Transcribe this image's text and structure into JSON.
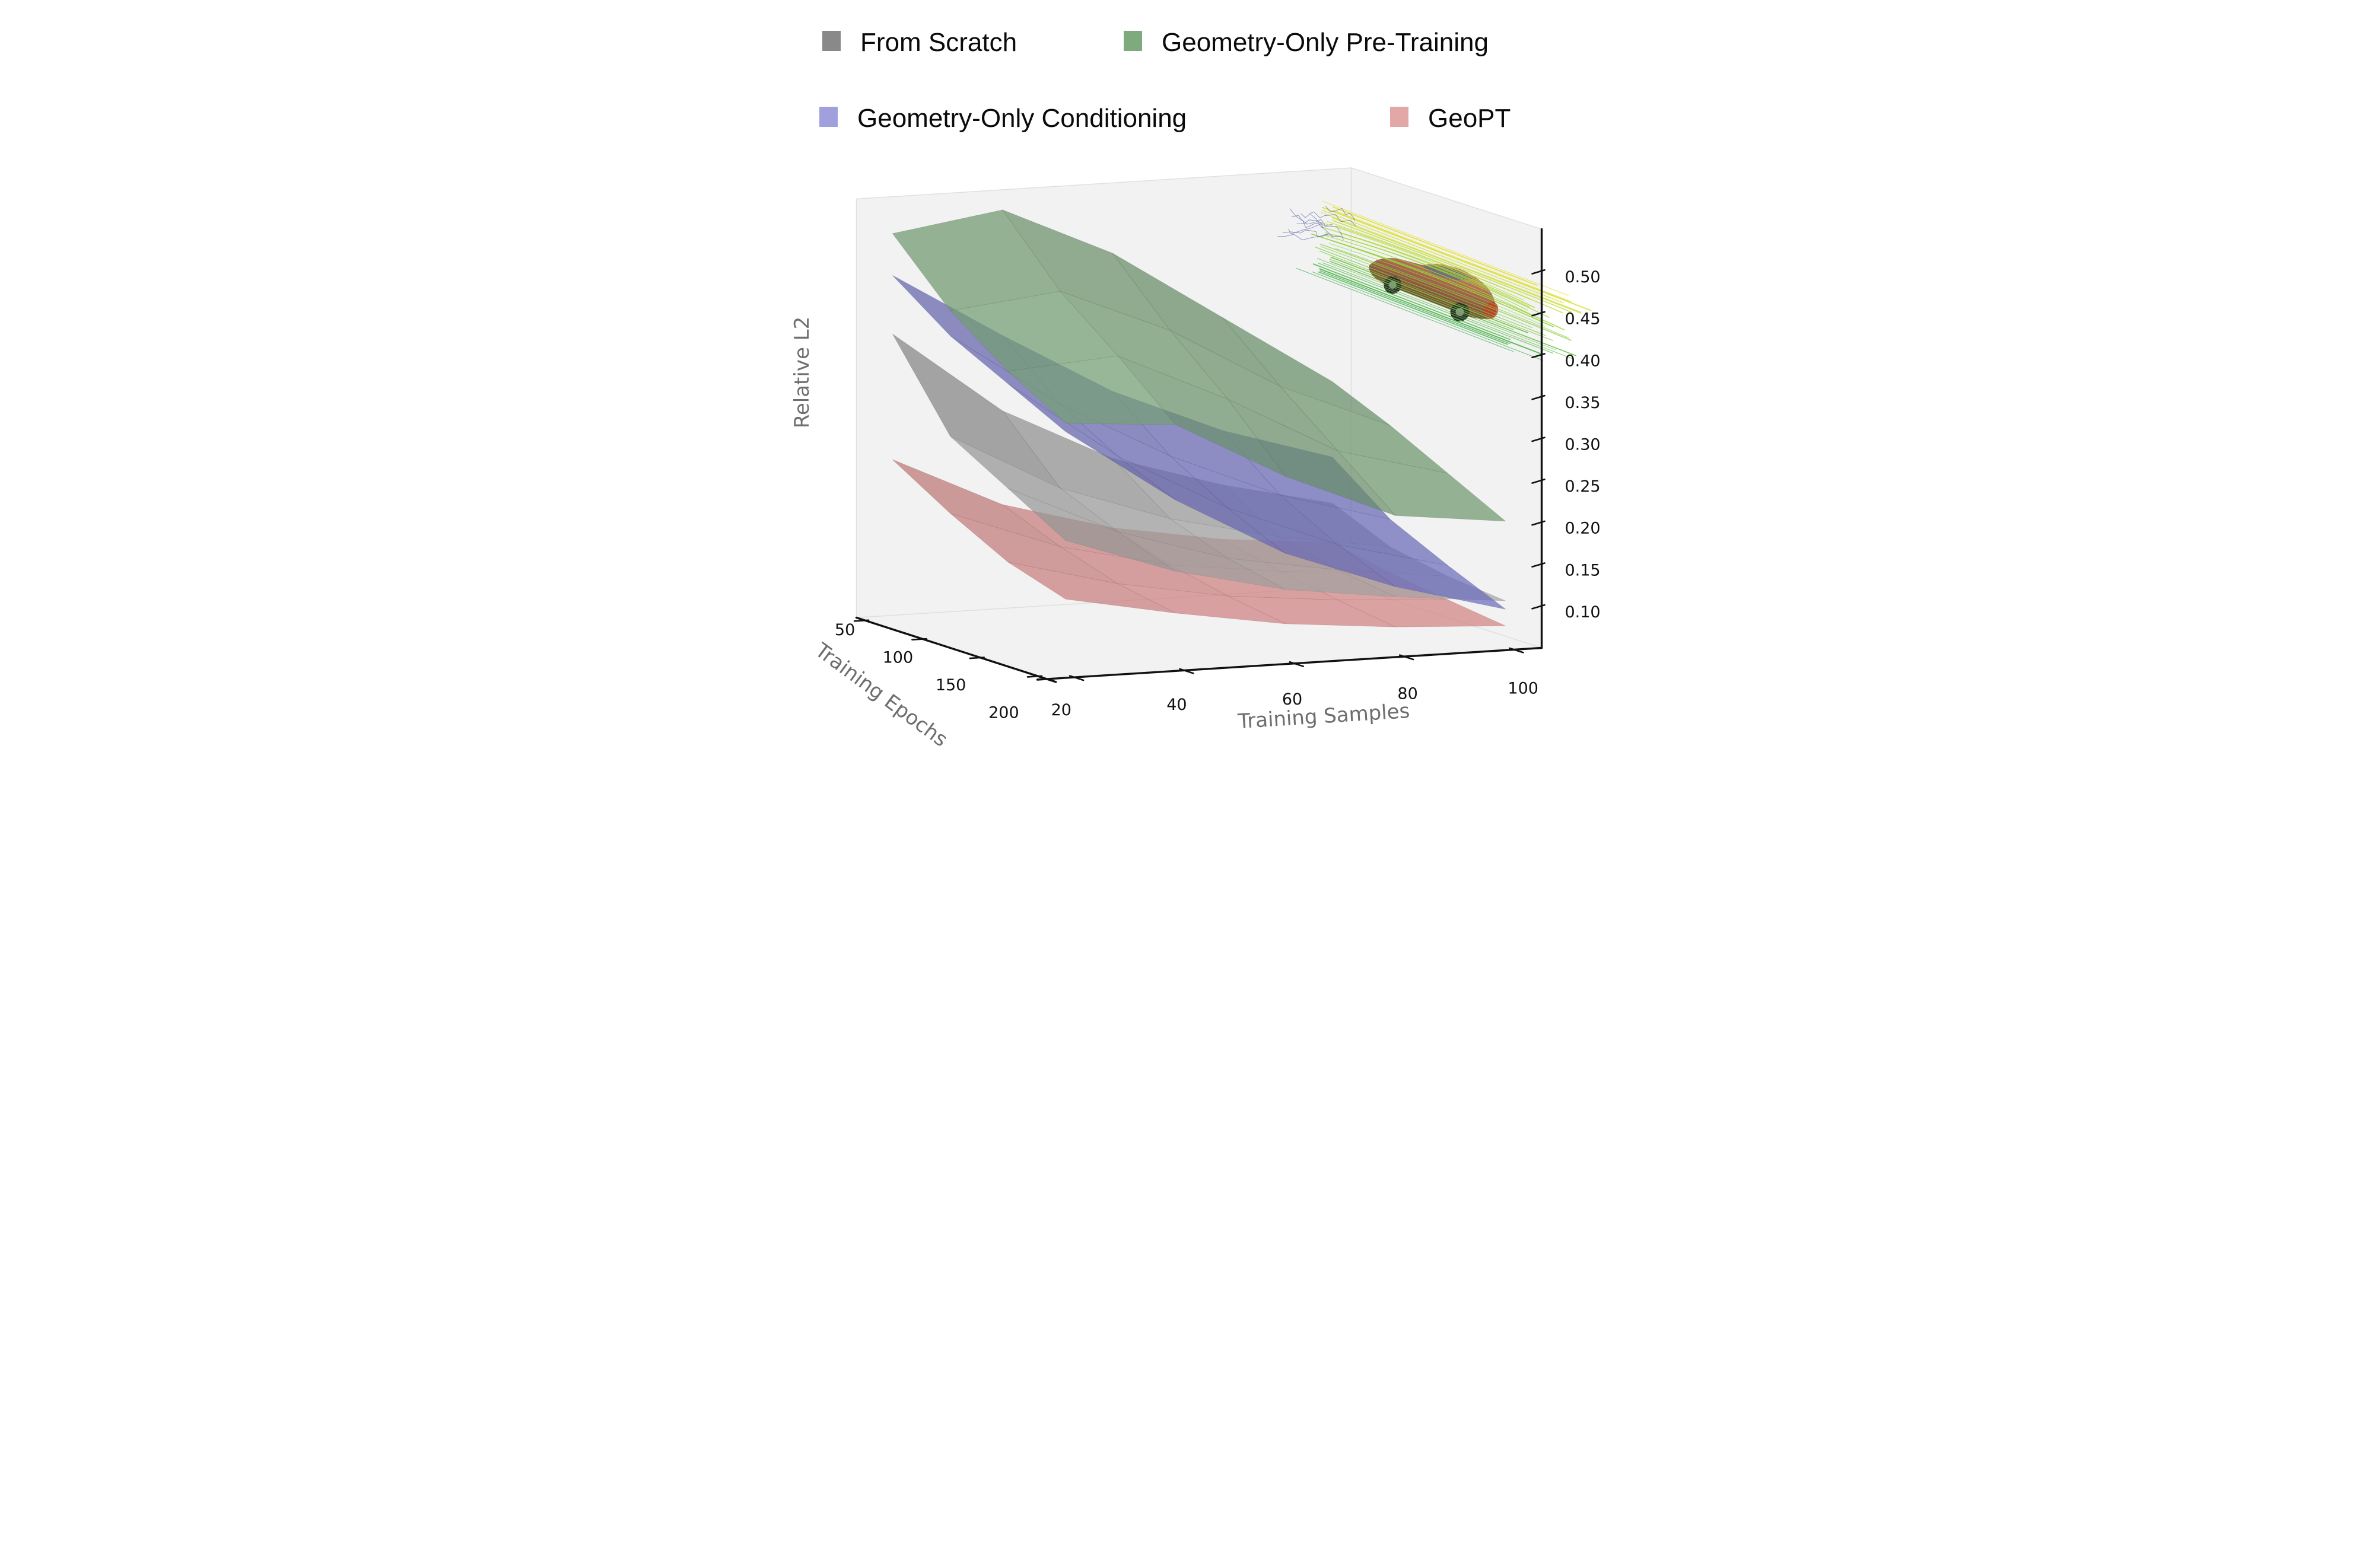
{
  "figure": {
    "background": "#ffffff",
    "pane_color": "#f2f2f3",
    "pane_edge_color": "#e0e0e2",
    "axis_line_color": "#111111",
    "tick_label_color": "#111111",
    "axis_label_color": "#6e6e6e",
    "surface_opacity": 0.72
  },
  "axes": {
    "x": {
      "label": "Training Samples",
      "ticks": [
        20,
        40,
        60,
        80,
        100
      ],
      "range": [
        15,
        105
      ]
    },
    "y": {
      "label": "Training Epochs",
      "ticks": [
        50,
        100,
        150,
        200
      ],
      "range": [
        42.5,
        207.5
      ]
    },
    "z": {
      "label": "Relative L2",
      "ticks": [
        "0.10",
        "0.15",
        "0.20",
        "0.25",
        "0.30",
        "0.35",
        "0.40",
        "0.45",
        "0.50"
      ],
      "range": [
        0.05,
        0.55
      ]
    }
  },
  "chart_data": {
    "type": "surface",
    "xlabel": "Training Samples",
    "ylabel": "Training Epochs",
    "zlabel": "Relative L2",
    "x": [
      20,
      40,
      60,
      80,
      100
    ],
    "y": [
      50,
      100,
      150,
      200
    ],
    "zlim": [
      0.05,
      0.55
    ],
    "grid": false,
    "legend_position": "top",
    "series": [
      {
        "name": "From Scratch",
        "color": "#898989",
        "surface": "#a8a8a8",
        "values": [
          [
            0.39,
            0.29,
            0.225,
            0.185,
            0.155
          ],
          [
            0.29,
            0.22,
            0.175,
            0.145,
            0.125
          ],
          [
            0.25,
            0.19,
            0.15,
            0.128,
            0.112
          ],
          [
            0.21,
            0.165,
            0.135,
            0.118,
            0.105
          ]
        ]
      },
      {
        "name": "Geometry-Only Pre-Training",
        "color": "#7eaa7e",
        "surface": "#7ba87b",
        "values": [
          [
            0.51,
            0.53,
            0.47,
            0.385,
            0.3
          ],
          [
            0.44,
            0.455,
            0.4,
            0.325,
            0.27
          ],
          [
            0.39,
            0.4,
            0.34,
            0.27,
            0.235
          ],
          [
            0.35,
            0.34,
            0.27,
            0.215,
            0.2
          ]
        ]
      },
      {
        "name": "Geometry-Only Conditioning",
        "color": "#a0a0dc",
        "surface": "#7373c9",
        "values": [
          [
            0.46,
            0.38,
            0.305,
            0.25,
            0.21
          ],
          [
            0.41,
            0.32,
            0.25,
            0.195,
            0.158
          ],
          [
            0.375,
            0.28,
            0.21,
            0.158,
            0.125
          ],
          [
            0.34,
            0.25,
            0.178,
            0.13,
            0.095
          ]
        ]
      },
      {
        "name": "GeoPT",
        "color": "#e2a8a8",
        "surface": "#d58585",
        "values": [
          [
            0.24,
            0.178,
            0.142,
            0.12,
            0.108
          ],
          [
            0.198,
            0.15,
            0.12,
            0.104,
            0.094
          ],
          [
            0.162,
            0.128,
            0.105,
            0.092,
            0.084
          ],
          [
            0.14,
            0.115,
            0.094,
            0.082,
            0.075
          ]
        ]
      }
    ]
  },
  "inset": {
    "name": "car aerodynamics streamline rendering",
    "colors": {
      "body_light": "#c48a68",
      "body": "#a8654e",
      "body_dark": "#7c4434",
      "glass": "#6a6f7a",
      "nose": "#c23b2a",
      "wheel": "#2e2a2a",
      "hub": "#8a8a8a",
      "stream_top": "#e8e337",
      "stream_mid": "#8fd435",
      "stream_bottom": "#3fae52",
      "wake": "#2b3f8e"
    }
  }
}
